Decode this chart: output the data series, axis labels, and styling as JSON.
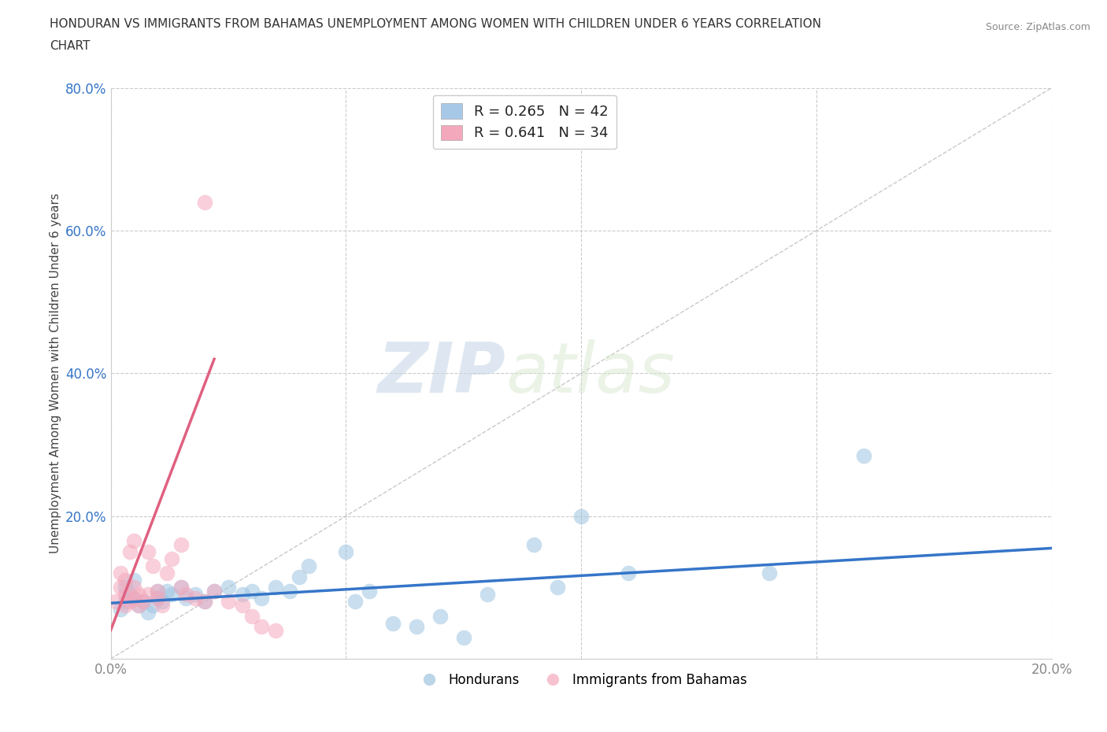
{
  "title_line1": "HONDURAN VS IMMIGRANTS FROM BAHAMAS UNEMPLOYMENT AMONG WOMEN WITH CHILDREN UNDER 6 YEARS CORRELATION",
  "title_line2": "CHART",
  "source": "Source: ZipAtlas.com",
  "ylabel": "Unemployment Among Women with Children Under 6 years",
  "xlim": [
    0.0,
    0.2
  ],
  "ylim": [
    0.0,
    0.8
  ],
  "xticks": [
    0.0,
    0.05,
    0.1,
    0.15,
    0.2
  ],
  "yticks": [
    0.0,
    0.2,
    0.4,
    0.6,
    0.8
  ],
  "xticklabels": [
    "0.0%",
    "",
    "",
    "",
    "20.0%"
  ],
  "yticklabels": [
    "",
    "20.0%",
    "40.0%",
    "60.0%",
    "80.0%"
  ],
  "watermark_zip": "ZIP",
  "watermark_atlas": "atlas",
  "background_color": "#ffffff",
  "grid_color": "#cccccc",
  "honduran_scatter_color": "#9ec4e0",
  "bahamas_scatter_color": "#f4a8bc",
  "honduran_line_color": "#3575c8",
  "bahamas_line_color": "#e06080",
  "legend_box_blue": "#a8c8e8",
  "legend_box_pink": "#f4a8bc",
  "legend_r_color": "#3575c8",
  "legend_n_color": "#3575c8",
  "tick_color_x": "#888888",
  "tick_color_y": "#3575c8",
  "hondurans_x": [
    0.002,
    0.003,
    0.003,
    0.004,
    0.005,
    0.005,
    0.006,
    0.007,
    0.008,
    0.009,
    0.01,
    0.01,
    0.011,
    0.012,
    0.013,
    0.015,
    0.016,
    0.018,
    0.02,
    0.022,
    0.025,
    0.028,
    0.03,
    0.032,
    0.035,
    0.038,
    0.04,
    0.042,
    0.05,
    0.052,
    0.055,
    0.06,
    0.065,
    0.07,
    0.075,
    0.08,
    0.09,
    0.095,
    0.1,
    0.11,
    0.14,
    0.16
  ],
  "hondurans_y": [
    0.07,
    0.08,
    0.1,
    0.09,
    0.085,
    0.11,
    0.075,
    0.08,
    0.065,
    0.075,
    0.085,
    0.095,
    0.08,
    0.095,
    0.09,
    0.1,
    0.085,
    0.09,
    0.08,
    0.095,
    0.1,
    0.09,
    0.095,
    0.085,
    0.1,
    0.095,
    0.115,
    0.13,
    0.15,
    0.08,
    0.095,
    0.05,
    0.045,
    0.06,
    0.03,
    0.09,
    0.16,
    0.1,
    0.2,
    0.12,
    0.12,
    0.285
  ],
  "bahamas_x": [
    0.001,
    0.002,
    0.002,
    0.003,
    0.003,
    0.003,
    0.004,
    0.004,
    0.005,
    0.005,
    0.005,
    0.006,
    0.006,
    0.007,
    0.008,
    0.008,
    0.009,
    0.01,
    0.01,
    0.011,
    0.012,
    0.013,
    0.015,
    0.015,
    0.016,
    0.018,
    0.02,
    0.022,
    0.025,
    0.028,
    0.03,
    0.032,
    0.035,
    0.02
  ],
  "bahamas_y": [
    0.08,
    0.1,
    0.12,
    0.075,
    0.09,
    0.11,
    0.08,
    0.15,
    0.085,
    0.1,
    0.165,
    0.075,
    0.09,
    0.08,
    0.09,
    0.15,
    0.13,
    0.085,
    0.095,
    0.075,
    0.12,
    0.14,
    0.1,
    0.16,
    0.09,
    0.085,
    0.08,
    0.095,
    0.08,
    0.075,
    0.06,
    0.045,
    0.04,
    0.64
  ],
  "bahamas_line_x0": 0.0,
  "bahamas_line_y0": 0.04,
  "bahamas_line_x1": 0.022,
  "bahamas_line_y1": 0.42,
  "hondurans_line_x0": 0.0,
  "hondurans_line_y0": 0.078,
  "hondurans_line_x1": 0.2,
  "hondurans_line_y1": 0.155
}
